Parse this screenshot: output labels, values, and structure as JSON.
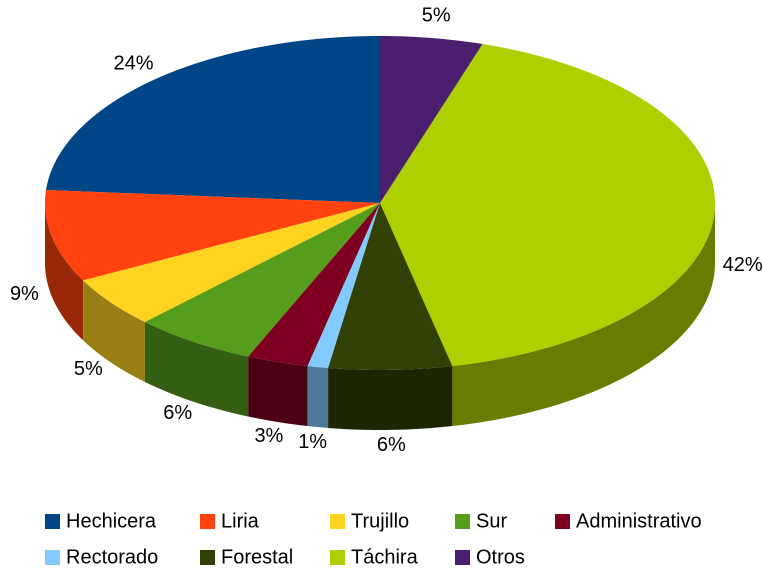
{
  "chart_data": {
    "type": "pie",
    "categories": [
      "Hechicera",
      "Liria",
      "Trujillo",
      "Sur",
      "Administrativo",
      "Rectorado",
      "Forestal",
      "Táchira",
      "Otros"
    ],
    "values": [
      24,
      9,
      5,
      6,
      3,
      1,
      6,
      42,
      5
    ],
    "value_labels": [
      "24%",
      "9%",
      "5%",
      "6%",
      "3%",
      "1%",
      "6%",
      "42%",
      "5%"
    ],
    "colors": [
      "#004586",
      "#ff420e",
      "#ffd320",
      "#579d1c",
      "#7e0021",
      "#83caff",
      "#314004",
      "#aecf00",
      "#4b1f6f"
    ],
    "legend": "bottom"
  }
}
